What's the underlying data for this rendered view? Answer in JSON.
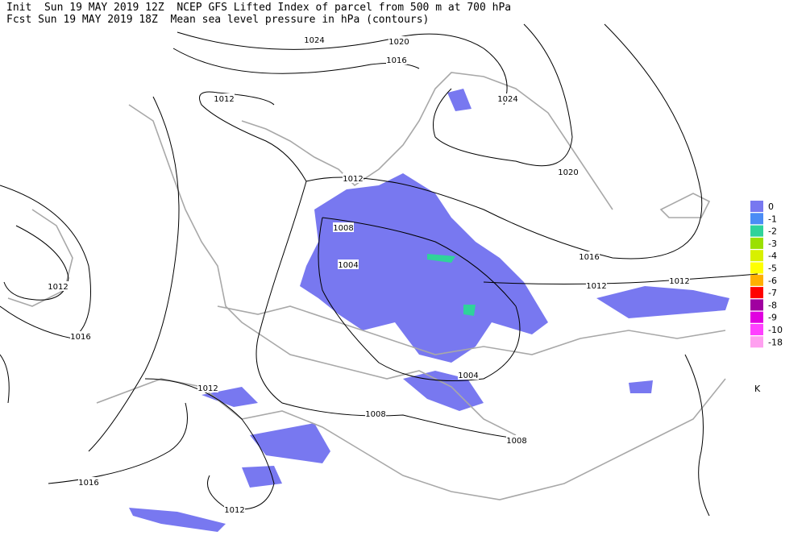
{
  "header": {
    "line1": "Init  Sun 19 MAY 2019 12Z  NCEP GFS Lifted Index of parcel from 500 m at 700 hPa",
    "line2": "Fcst Sun 19 MAY 2019 18Z  Mean sea level pressure in hPa (contours)"
  },
  "contour_labels": [
    "1024",
    "1020",
    "1016",
    "1024",
    "1012",
    "1012",
    "1020",
    "1016",
    "1012",
    "1012",
    "1008",
    "1004",
    "1012",
    "1016",
    "1004",
    "1012",
    "1008",
    "1008",
    "1016",
    "1012"
  ],
  "legend": {
    "items": [
      {
        "label": "0",
        "color": "#7878f0"
      },
      {
        "label": "-1",
        "color": "#4b8cf5"
      },
      {
        "label": "-2",
        "color": "#2fd39a"
      },
      {
        "label": "-3",
        "color": "#9be000"
      },
      {
        "label": "-4",
        "color": "#d8f000"
      },
      {
        "label": "-5",
        "color": "#ffff00"
      },
      {
        "label": "-6",
        "color": "#ffb000"
      },
      {
        "label": "-7",
        "color": "#ff0000"
      },
      {
        "label": "-8",
        "color": "#a000a0"
      },
      {
        "label": "-9",
        "color": "#e000e0"
      },
      {
        "label": "-10",
        "color": "#ff40ff"
      },
      {
        "label": "-18",
        "color": "#ffa0f0"
      }
    ],
    "unit": "K"
  }
}
